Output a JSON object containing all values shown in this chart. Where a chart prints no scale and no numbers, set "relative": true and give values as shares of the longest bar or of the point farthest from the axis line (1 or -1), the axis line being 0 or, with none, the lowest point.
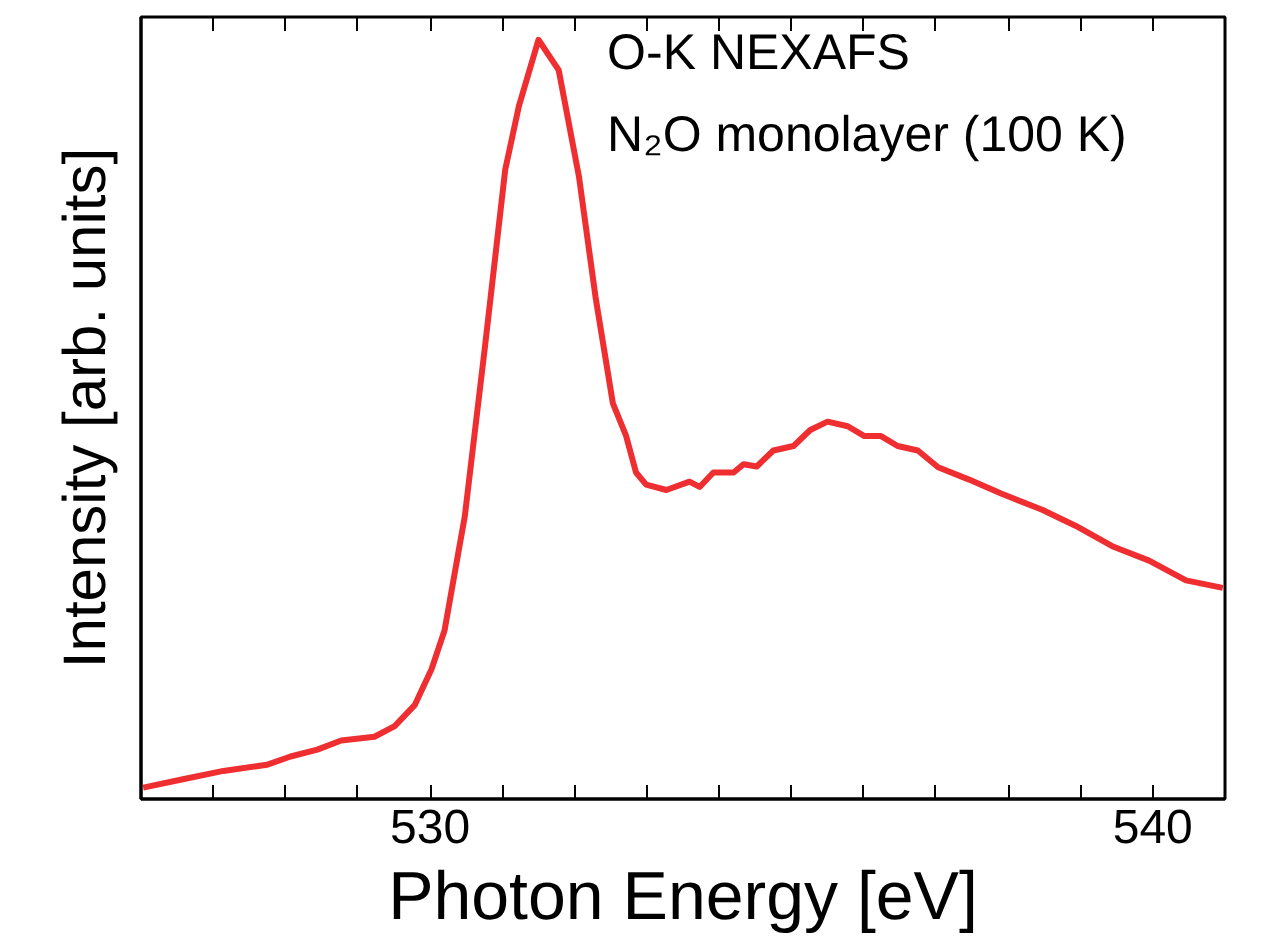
{
  "chart_data": {
    "type": "line",
    "relative": true,
    "xlabel": "Photon Energy [eV]",
    "ylabel": "Intensity [arb. units]",
    "annotations": [
      "O-K NEXAFS",
      "N₂O monolayer (100 K)"
    ],
    "xlim": [
      526,
      541
    ],
    "xticks": [
      {
        "value": 527,
        "label": null
      },
      {
        "value": 528,
        "label": null
      },
      {
        "value": 529,
        "label": null
      },
      530,
      {
        "value": 531,
        "label": null
      },
      {
        "value": 532,
        "label": null
      },
      {
        "value": 533,
        "label": null
      },
      {
        "value": 534,
        "label": null
      },
      {
        "value": 535,
        "label": null
      },
      {
        "value": 536,
        "label": null
      },
      {
        "value": 537,
        "label": null
      },
      {
        "value": 538,
        "label": null
      },
      {
        "value": 539,
        "label": null
      },
      540
    ],
    "grid": false,
    "marker": "none",
    "line_style": "solid",
    "series": [
      {
        "color": "#ee2e31",
        "x": [
          526.03,
          526.58,
          527.14,
          527.74,
          528.07,
          528.44,
          528.77,
          529.23,
          529.51,
          529.79,
          530.02,
          530.2,
          530.48,
          530.76,
          531.04,
          531.23,
          531.5,
          531.78,
          532.06,
          532.29,
          532.53,
          532.71,
          532.85,
          532.99,
          533.27,
          533.59,
          533.73,
          533.92,
          534.2,
          534.34,
          534.52,
          534.75,
          535.03,
          535.26,
          535.5,
          535.78,
          536.01,
          536.24,
          536.47,
          536.75,
          537.03,
          537.45,
          537.91,
          538.47,
          538.93,
          539.44,
          539.95,
          540.46,
          540.97
        ],
        "values": [
          0.015,
          0.026,
          0.037,
          0.045,
          0.056,
          0.065,
          0.077,
          0.082,
          0.096,
          0.124,
          0.171,
          0.222,
          0.372,
          0.596,
          0.829,
          0.913,
          1.0,
          0.96,
          0.82,
          0.661,
          0.521,
          0.479,
          0.43,
          0.414,
          0.407,
          0.418,
          0.411,
          0.43,
          0.43,
          0.441,
          0.438,
          0.459,
          0.465,
          0.486,
          0.497,
          0.491,
          0.478,
          0.478,
          0.465,
          0.459,
          0.437,
          0.421,
          0.402,
          0.381,
          0.36,
          0.333,
          0.314,
          0.288,
          0.278
        ]
      }
    ]
  }
}
